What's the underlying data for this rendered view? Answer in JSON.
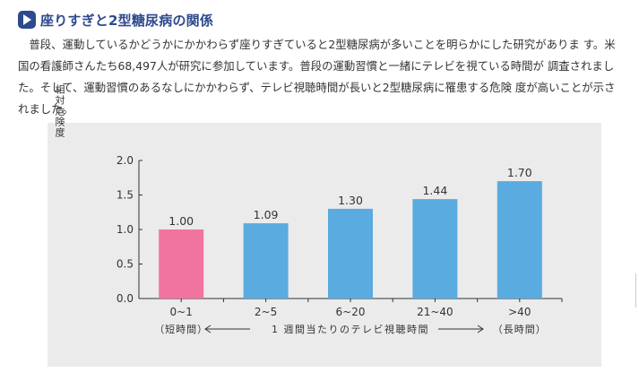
{
  "header": {
    "icon": "play-icon",
    "title": "座りすぎと2型糖尿病の関係"
  },
  "body_text": "普段、運動しているかどうかにかかわらず座りすぎていると2型糖尿病が多いことを明らかにした研究がありま す。米国の看護師さんたち68,497人が研究に参加しています。普段の運動習慣と一緒にテレビを視ている時間が 調査されました。そして、運動習慣のあるなしにかかわらず、テレビ視聴時間が長いと2型糖尿病に罹患する危険 度が高いことが示されました。",
  "colors": {
    "panel_bg": "#ebebeb",
    "accent": "#2e4a8c",
    "highlight_bar": "#f0749f",
    "bar": "#5aabdf"
  },
  "chart_data": {
    "type": "bar",
    "title": "",
    "ylabel": "相対危険度",
    "xlabel": "1 週間当たりのテレビ視聴時間",
    "xlabel_left": "（短時間）",
    "xlabel_right": "（長時間）",
    "categories": [
      "0~1",
      "2~5",
      "6~20",
      "21~40",
      ">40"
    ],
    "values": [
      1.0,
      1.09,
      1.3,
      1.44,
      1.7
    ],
    "value_labels": [
      "1.00",
      "1.09",
      "1.30",
      "1.44",
      "1.70"
    ],
    "bar_colors": [
      "#f0749f",
      "#5aabdf",
      "#5aabdf",
      "#5aabdf",
      "#5aabdf"
    ],
    "ylim": [
      0,
      2.0
    ],
    "yticks": [
      0,
      0.5,
      1.0,
      1.5,
      2.0
    ],
    "ytick_labels": [
      "0.0",
      "0.5",
      "1.0",
      "1.5",
      "2.0"
    ],
    "grid": false,
    "legend": "none"
  }
}
